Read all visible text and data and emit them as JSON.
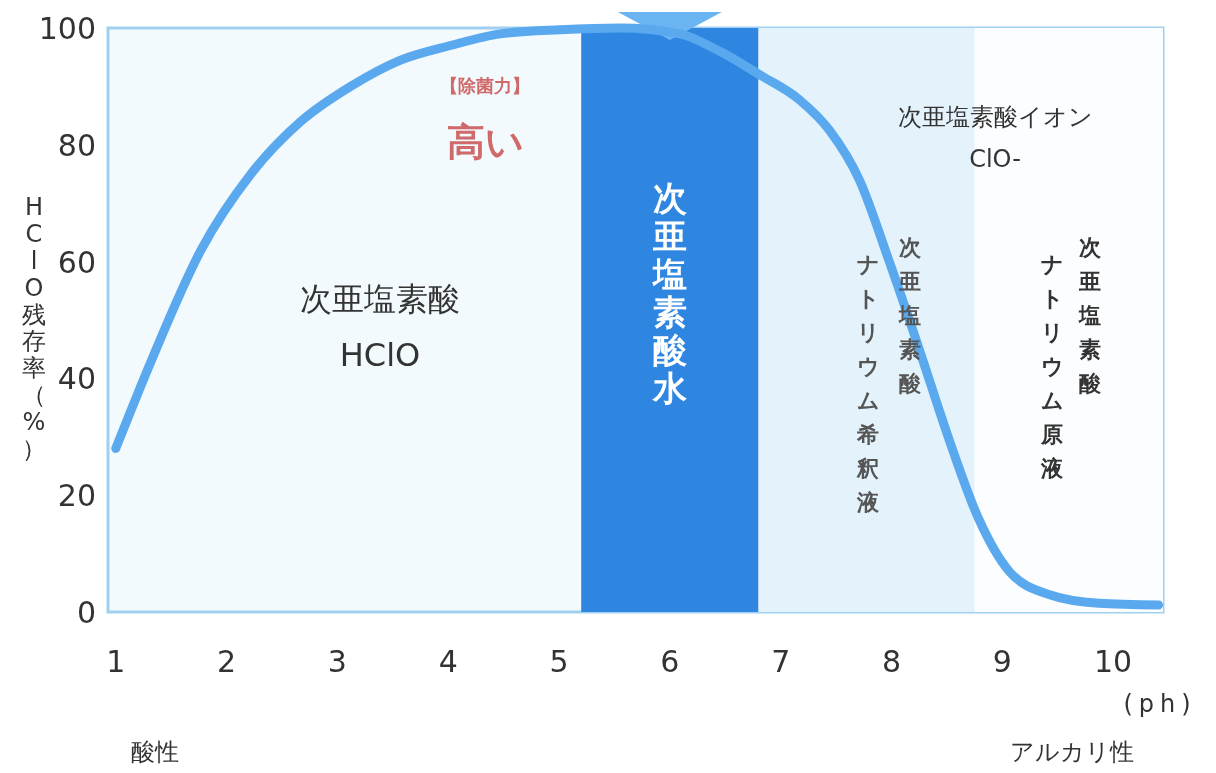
{
  "chart_data": {
    "type": "line",
    "xlabel": "(ph)",
    "ylabel": "HClO残存率（%）",
    "xlim": [
      0.93,
      10.45
    ],
    "ylim": [
      0,
      100
    ],
    "xticks": [
      1,
      2,
      3,
      4,
      5,
      6,
      7,
      8,
      9,
      10
    ],
    "yticks": [
      0,
      20,
      40,
      60,
      80,
      100
    ],
    "grid": false,
    "marker": "none",
    "line_style": "solid",
    "series": [
      {
        "color": "#5aa9ee",
        "x": [
          1,
          1.32,
          1.77,
          2.22,
          2.67,
          3.12,
          3.57,
          4.02,
          4.47,
          5.01,
          5.55,
          6.09,
          6.45,
          6.81,
          7.17,
          7.44,
          7.71,
          7.98,
          8.25,
          8.52,
          8.79,
          9.06,
          9.42,
          9.87,
          10.41
        ],
        "values": [
          28,
          43,
          62,
          75,
          84,
          90,
          94.5,
          97,
          99,
          99.7,
          100,
          99,
          96,
          92,
          87.7,
          82.5,
          74,
          60,
          45,
          29.5,
          15.8,
          7,
          3,
          1.5,
          1.2
        ]
      }
    ],
    "bands": [
      {
        "axis": "x",
        "from": 5.2,
        "to": 6.8,
        "label": "次亜塩素酸水",
        "color": "#2e86e0"
      },
      {
        "axis": "x",
        "from": 6.8,
        "to": 8.75,
        "color": "#e3f2fb"
      },
      {
        "axis": "x",
        "from": 8.75,
        "to": 10.45,
        "color": "#fbfdff"
      }
    ],
    "annotations": [
      "【除菌力】",
      "高い",
      "次亜塩素酸\nHClO",
      "次亜塩素酸イオン\nClO-",
      "酸性",
      "アルカリ性",
      "次亜塩素酸",
      "ナトリウム希釈液",
      "次亜塩素酸",
      "ナトリウム原液"
    ]
  }
}
